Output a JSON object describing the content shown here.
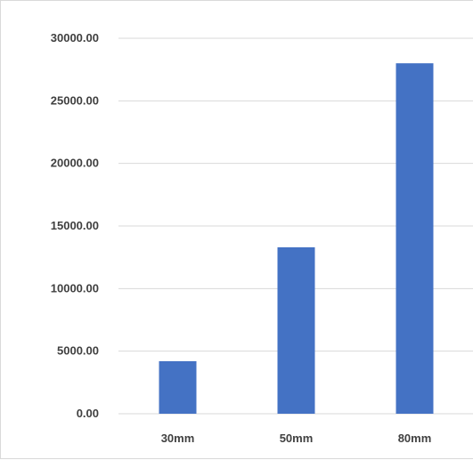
{
  "chart_data": {
    "type": "bar",
    "categories": [
      "30mm",
      "50mm",
      "80mm"
    ],
    "values": [
      4200,
      13300,
      28000
    ],
    "y_tick_labels": [
      "0.00",
      "5000.00",
      "10000.00",
      "15000.00",
      "20000.00",
      "25000.00",
      "30000.00"
    ],
    "ylim": [
      0,
      30000
    ],
    "y_step": 5000,
    "grid": true,
    "legend": "none",
    "bar_color": "#4472C4",
    "grid_color": "#d9d9d9"
  }
}
